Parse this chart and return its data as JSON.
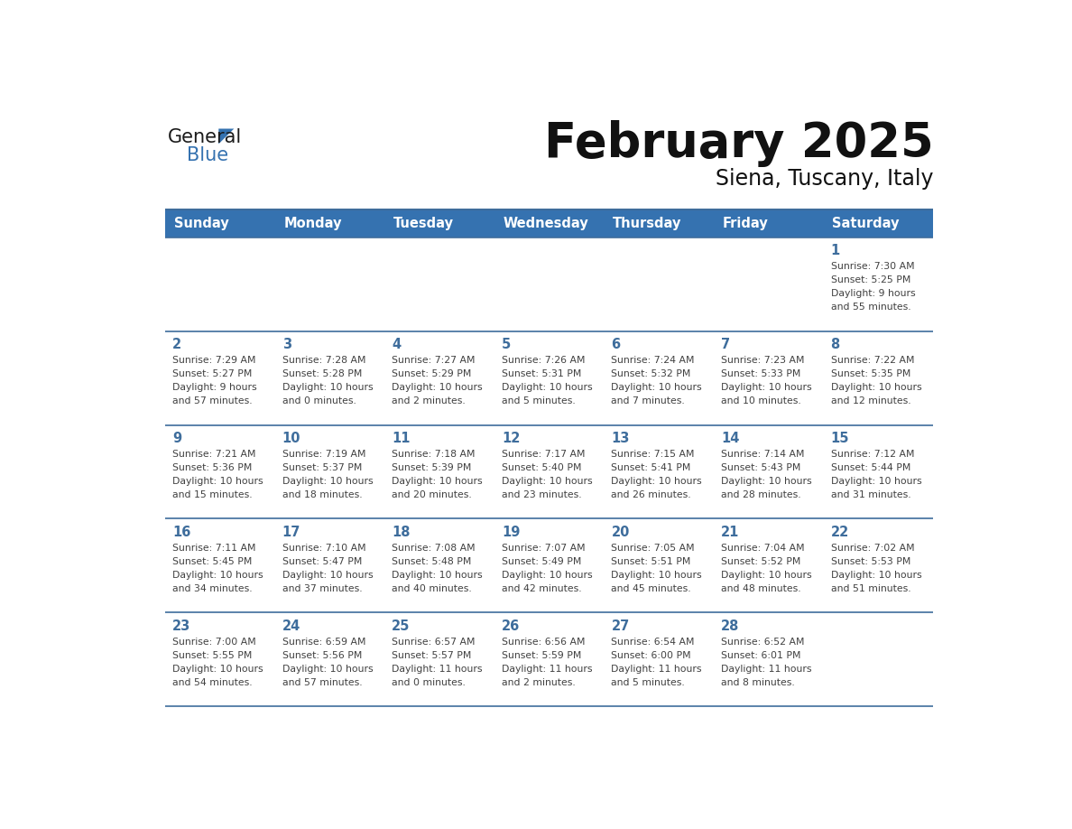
{
  "title": "February 2025",
  "subtitle": "Siena, Tuscany, Italy",
  "days_of_week": [
    "Sunday",
    "Monday",
    "Tuesday",
    "Wednesday",
    "Thursday",
    "Friday",
    "Saturday"
  ],
  "header_bg": "#3572B0",
  "header_text": "#FFFFFF",
  "cell_bg": "#FFFFFF",
  "row_sep_color": "#3E6D9C",
  "day_number_color": "#3E6D9C",
  "text_color": "#404040",
  "calendar_data": [
    [
      null,
      null,
      null,
      null,
      null,
      null,
      {
        "day": 1,
        "sunrise": "7:30 AM",
        "sunset": "5:25 PM",
        "daylight": "9 hours\nand 55 minutes."
      }
    ],
    [
      {
        "day": 2,
        "sunrise": "7:29 AM",
        "sunset": "5:27 PM",
        "daylight": "9 hours\nand 57 minutes."
      },
      {
        "day": 3,
        "sunrise": "7:28 AM",
        "sunset": "5:28 PM",
        "daylight": "10 hours\nand 0 minutes."
      },
      {
        "day": 4,
        "sunrise": "7:27 AM",
        "sunset": "5:29 PM",
        "daylight": "10 hours\nand 2 minutes."
      },
      {
        "day": 5,
        "sunrise": "7:26 AM",
        "sunset": "5:31 PM",
        "daylight": "10 hours\nand 5 minutes."
      },
      {
        "day": 6,
        "sunrise": "7:24 AM",
        "sunset": "5:32 PM",
        "daylight": "10 hours\nand 7 minutes."
      },
      {
        "day": 7,
        "sunrise": "7:23 AM",
        "sunset": "5:33 PM",
        "daylight": "10 hours\nand 10 minutes."
      },
      {
        "day": 8,
        "sunrise": "7:22 AM",
        "sunset": "5:35 PM",
        "daylight": "10 hours\nand 12 minutes."
      }
    ],
    [
      {
        "day": 9,
        "sunrise": "7:21 AM",
        "sunset": "5:36 PM",
        "daylight": "10 hours\nand 15 minutes."
      },
      {
        "day": 10,
        "sunrise": "7:19 AM",
        "sunset": "5:37 PM",
        "daylight": "10 hours\nand 18 minutes."
      },
      {
        "day": 11,
        "sunrise": "7:18 AM",
        "sunset": "5:39 PM",
        "daylight": "10 hours\nand 20 minutes."
      },
      {
        "day": 12,
        "sunrise": "7:17 AM",
        "sunset": "5:40 PM",
        "daylight": "10 hours\nand 23 minutes."
      },
      {
        "day": 13,
        "sunrise": "7:15 AM",
        "sunset": "5:41 PM",
        "daylight": "10 hours\nand 26 minutes."
      },
      {
        "day": 14,
        "sunrise": "7:14 AM",
        "sunset": "5:43 PM",
        "daylight": "10 hours\nand 28 minutes."
      },
      {
        "day": 15,
        "sunrise": "7:12 AM",
        "sunset": "5:44 PM",
        "daylight": "10 hours\nand 31 minutes."
      }
    ],
    [
      {
        "day": 16,
        "sunrise": "7:11 AM",
        "sunset": "5:45 PM",
        "daylight": "10 hours\nand 34 minutes."
      },
      {
        "day": 17,
        "sunrise": "7:10 AM",
        "sunset": "5:47 PM",
        "daylight": "10 hours\nand 37 minutes."
      },
      {
        "day": 18,
        "sunrise": "7:08 AM",
        "sunset": "5:48 PM",
        "daylight": "10 hours\nand 40 minutes."
      },
      {
        "day": 19,
        "sunrise": "7:07 AM",
        "sunset": "5:49 PM",
        "daylight": "10 hours\nand 42 minutes."
      },
      {
        "day": 20,
        "sunrise": "7:05 AM",
        "sunset": "5:51 PM",
        "daylight": "10 hours\nand 45 minutes."
      },
      {
        "day": 21,
        "sunrise": "7:04 AM",
        "sunset": "5:52 PM",
        "daylight": "10 hours\nand 48 minutes."
      },
      {
        "day": 22,
        "sunrise": "7:02 AM",
        "sunset": "5:53 PM",
        "daylight": "10 hours\nand 51 minutes."
      }
    ],
    [
      {
        "day": 23,
        "sunrise": "7:00 AM",
        "sunset": "5:55 PM",
        "daylight": "10 hours\nand 54 minutes."
      },
      {
        "day": 24,
        "sunrise": "6:59 AM",
        "sunset": "5:56 PM",
        "daylight": "10 hours\nand 57 minutes."
      },
      {
        "day": 25,
        "sunrise": "6:57 AM",
        "sunset": "5:57 PM",
        "daylight": "11 hours\nand 0 minutes."
      },
      {
        "day": 26,
        "sunrise": "6:56 AM",
        "sunset": "5:59 PM",
        "daylight": "11 hours\nand 2 minutes."
      },
      {
        "day": 27,
        "sunrise": "6:54 AM",
        "sunset": "6:00 PM",
        "daylight": "11 hours\nand 5 minutes."
      },
      {
        "day": 28,
        "sunrise": "6:52 AM",
        "sunset": "6:01 PM",
        "daylight": "11 hours\nand 8 minutes."
      },
      null
    ]
  ],
  "logo_text_general": "General",
  "logo_text_blue": "Blue",
  "logo_triangle_color": "#3572B0",
  "logo_general_color": "#1a1a1a"
}
